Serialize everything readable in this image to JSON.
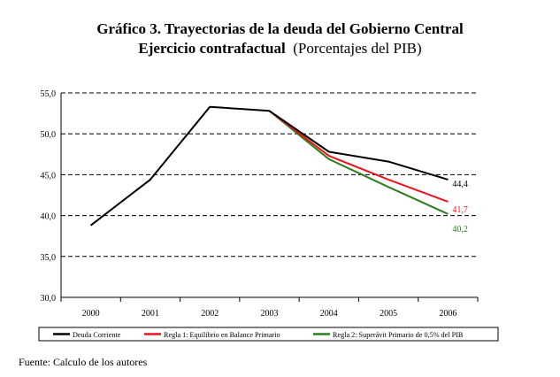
{
  "chart_data": {
    "type": "line",
    "title": "Gráfico 3. Trayectorias de la deuda del Gobierno Central",
    "subtitle_bold": "Ejercicio contrafactual",
    "subtitle_unit": "(Porcentajes del PIB)",
    "categories": [
      "2000",
      "2001",
      "2002",
      "2003",
      "2004",
      "2005",
      "2006"
    ],
    "ylim": [
      30,
      55
    ],
    "yticks": [
      "30,0",
      "35,0",
      "40,0",
      "45,0",
      "50,0",
      "55,0"
    ],
    "ytick_values": [
      30,
      35,
      40,
      45,
      50,
      55
    ],
    "grid": true,
    "legend_position": "bottom",
    "series": [
      {
        "name": "Regla 2: Superávit Primario de 0,5% del PIB",
        "color": "#2e7d1f",
        "values": [
          null,
          null,
          null,
          52.8,
          46.9,
          43.5,
          40.2
        ],
        "end_label": "40,2"
      },
      {
        "name": "Regla 1: Equilibrio en Balance Primario",
        "color": "#e8141b",
        "values": [
          null,
          null,
          null,
          52.8,
          47.3,
          44.4,
          41.7
        ],
        "end_label": "41,7"
      },
      {
        "name": "Deuda Corriente",
        "color": "#000000",
        "values": [
          38.8,
          44.4,
          53.3,
          52.8,
          47.8,
          46.6,
          44.4
        ],
        "end_label": "44,4"
      }
    ]
  },
  "footer": {
    "source": "Fuente: Calculo de los autores"
  }
}
